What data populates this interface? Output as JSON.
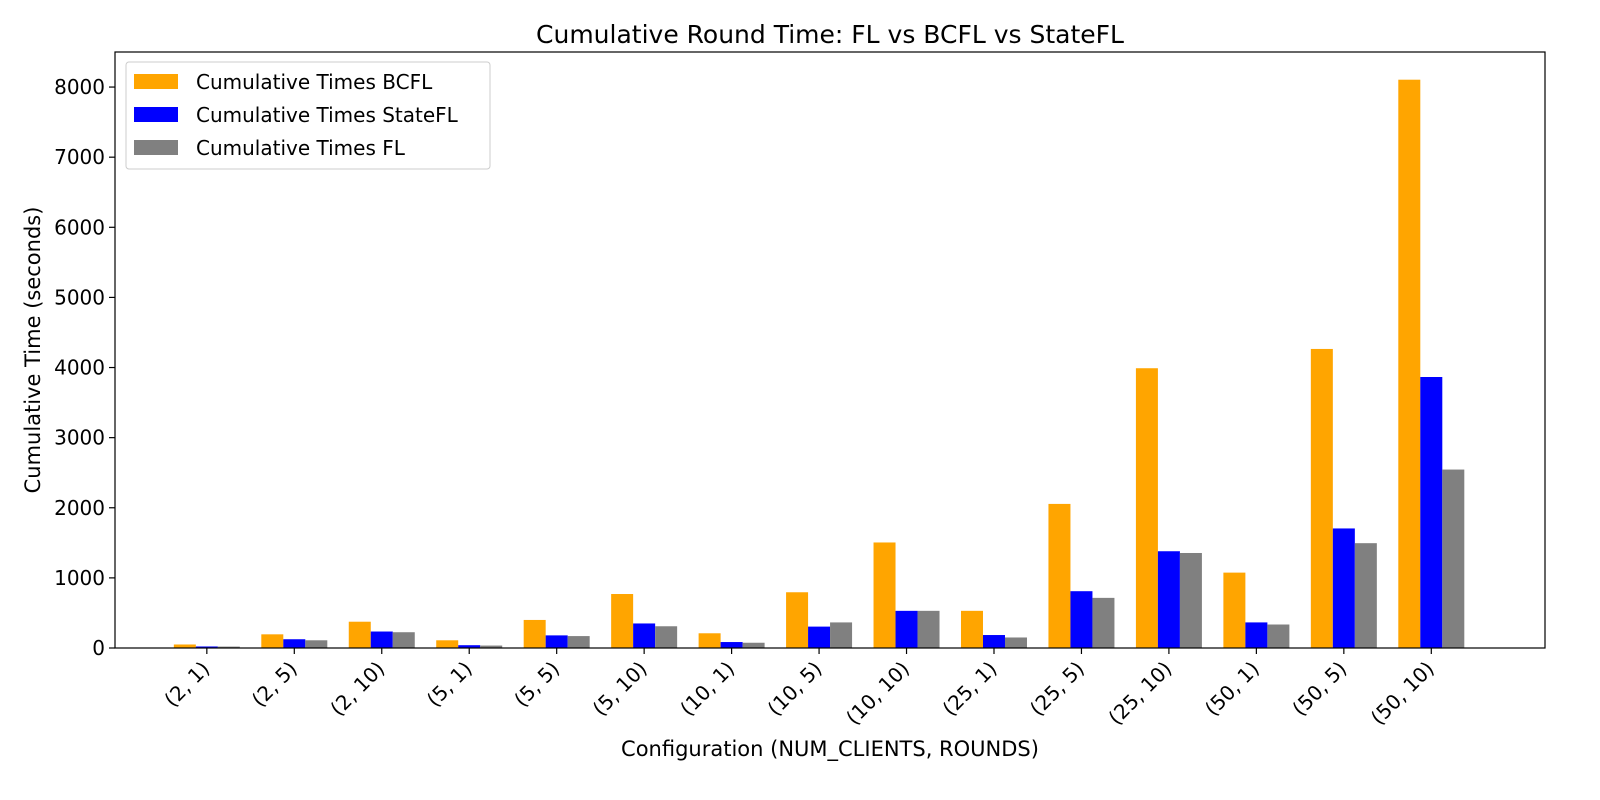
{
  "chart_data": {
    "type": "bar",
    "title": "Cumulative Round Time: FL vs BCFL vs StateFL",
    "xlabel": "Configuration (NUM_CLIENTS, ROUNDS)",
    "ylabel": "Cumulative Time (seconds)",
    "ylim": [
      0,
      8500
    ],
    "yticks": [
      0,
      1000,
      2000,
      3000,
      4000,
      5000,
      6000,
      7000,
      8000
    ],
    "grid": false,
    "legend_position": "top-left",
    "categories": [
      "(2, 1)",
      "(2, 5)",
      "(2, 10)",
      "(5, 1)",
      "(5, 5)",
      "(5, 10)",
      "(10, 1)",
      "(10, 5)",
      "(10, 10)",
      "(25, 1)",
      "(25, 5)",
      "(25, 10)",
      "(50, 1)",
      "(50, 5)",
      "(50, 10)"
    ],
    "series": [
      {
        "name": "Cumulative Times BCFL",
        "color": "#FFA500",
        "values": [
          50,
          195,
          375,
          110,
          400,
          770,
          210,
          795,
          1505,
          530,
          2055,
          3990,
          1075,
          4265,
          8105
        ]
      },
      {
        "name": "Cumulative Times StateFL",
        "color": "#0000FF",
        "values": [
          22,
          125,
          235,
          40,
          180,
          350,
          85,
          305,
          530,
          185,
          810,
          1380,
          365,
          1705,
          3865
        ]
      },
      {
        "name": "Cumulative Times FL",
        "color": "#808080",
        "values": [
          20,
          110,
          225,
          35,
          170,
          310,
          75,
          365,
          530,
          150,
          715,
          1355,
          335,
          1495,
          2545
        ]
      }
    ]
  }
}
